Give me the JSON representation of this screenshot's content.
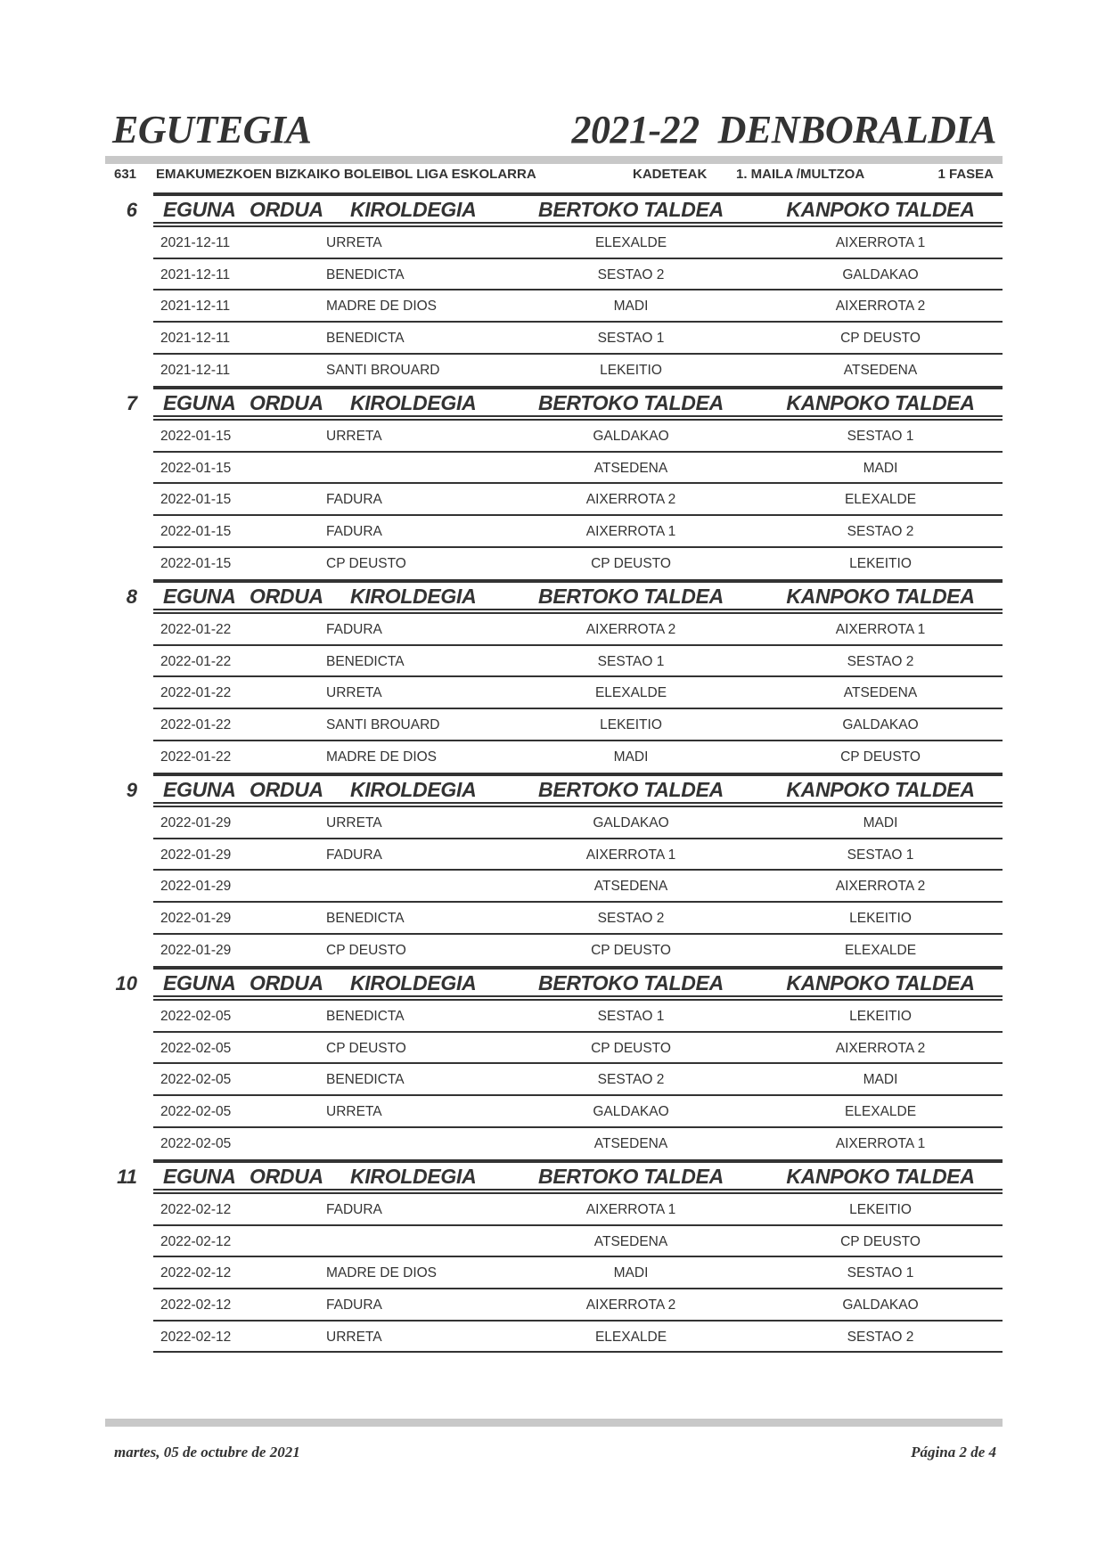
{
  "header": {
    "left_title": "EGUTEGIA",
    "right_title": "2021-22  DENBORALDIA"
  },
  "info": {
    "code": "631",
    "league": "EMAKUMEZKOEN BIZKAIKO BOLEIBOL LIGA ESKOLARRA",
    "category": "KADETEAK",
    "level": "1. MAILA /MULTZOA",
    "phase": "1 FASEA"
  },
  "columns": {
    "day": "EGUNA",
    "time": "ORDUA",
    "venue": "KIROLDEGIA",
    "home": "BERTOKO TALDEA",
    "away": "KANPOKO TALDEA"
  },
  "rounds": [
    {
      "number": "6",
      "matches": [
        {
          "date": "2021-12-11",
          "venue": "URRETA",
          "home": "ELEXALDE",
          "away": "AIXERROTA 1"
        },
        {
          "date": "2021-12-11",
          "venue": "BENEDICTA",
          "home": "SESTAO 2",
          "away": "GALDAKAO"
        },
        {
          "date": "2021-12-11",
          "venue": "MADRE DE DIOS",
          "home": "MADI",
          "away": "AIXERROTA 2"
        },
        {
          "date": "2021-12-11",
          "venue": "BENEDICTA",
          "home": "SESTAO 1",
          "away": "CP DEUSTO"
        },
        {
          "date": "2021-12-11",
          "venue": "SANTI BROUARD",
          "home": "LEKEITIO",
          "away": "ATSEDENA"
        }
      ]
    },
    {
      "number": "7",
      "matches": [
        {
          "date": "2022-01-15",
          "venue": "URRETA",
          "home": "GALDAKAO",
          "away": "SESTAO 1"
        },
        {
          "date": "2022-01-15",
          "venue": "",
          "home": "ATSEDENA",
          "away": "MADI"
        },
        {
          "date": "2022-01-15",
          "venue": "FADURA",
          "home": "AIXERROTA 2",
          "away": "ELEXALDE"
        },
        {
          "date": "2022-01-15",
          "venue": "FADURA",
          "home": "AIXERROTA 1",
          "away": "SESTAO 2"
        },
        {
          "date": "2022-01-15",
          "venue": "CP DEUSTO",
          "home": "CP DEUSTO",
          "away": "LEKEITIO"
        }
      ]
    },
    {
      "number": "8",
      "matches": [
        {
          "date": "2022-01-22",
          "venue": "FADURA",
          "home": "AIXERROTA 2",
          "away": "AIXERROTA 1"
        },
        {
          "date": "2022-01-22",
          "venue": "BENEDICTA",
          "home": "SESTAO 1",
          "away": "SESTAO 2"
        },
        {
          "date": "2022-01-22",
          "venue": "URRETA",
          "home": "ELEXALDE",
          "away": "ATSEDENA"
        },
        {
          "date": "2022-01-22",
          "venue": "SANTI BROUARD",
          "home": "LEKEITIO",
          "away": "GALDAKAO"
        },
        {
          "date": "2022-01-22",
          "venue": "MADRE DE DIOS",
          "home": "MADI",
          "away": "CP DEUSTO"
        }
      ]
    },
    {
      "number": "9",
      "matches": [
        {
          "date": "2022-01-29",
          "venue": "URRETA",
          "home": "GALDAKAO",
          "away": "MADI"
        },
        {
          "date": "2022-01-29",
          "venue": "FADURA",
          "home": "AIXERROTA 1",
          "away": "SESTAO 1"
        },
        {
          "date": "2022-01-29",
          "venue": "",
          "home": "ATSEDENA",
          "away": "AIXERROTA 2"
        },
        {
          "date": "2022-01-29",
          "venue": "BENEDICTA",
          "home": "SESTAO 2",
          "away": "LEKEITIO"
        },
        {
          "date": "2022-01-29",
          "venue": "CP DEUSTO",
          "home": "CP DEUSTO",
          "away": "ELEXALDE"
        }
      ]
    },
    {
      "number": "10",
      "matches": [
        {
          "date": "2022-02-05",
          "venue": "BENEDICTA",
          "home": "SESTAO 1",
          "away": "LEKEITIO"
        },
        {
          "date": "2022-02-05",
          "venue": "CP DEUSTO",
          "home": "CP DEUSTO",
          "away": "AIXERROTA 2"
        },
        {
          "date": "2022-02-05",
          "venue": "BENEDICTA",
          "home": "SESTAO 2",
          "away": "MADI"
        },
        {
          "date": "2022-02-05",
          "venue": "URRETA",
          "home": "GALDAKAO",
          "away": "ELEXALDE"
        },
        {
          "date": "2022-02-05",
          "venue": "",
          "home": "ATSEDENA",
          "away": "AIXERROTA 1"
        }
      ]
    },
    {
      "number": "11",
      "matches": [
        {
          "date": "2022-02-12",
          "venue": "FADURA",
          "home": "AIXERROTA 1",
          "away": "LEKEITIO"
        },
        {
          "date": "2022-02-12",
          "venue": "",
          "home": "ATSEDENA",
          "away": "CP DEUSTO"
        },
        {
          "date": "2022-02-12",
          "venue": "MADRE DE DIOS",
          "home": "MADI",
          "away": "SESTAO 1"
        },
        {
          "date": "2022-02-12",
          "venue": "FADURA",
          "home": "AIXERROTA 2",
          "away": "GALDAKAO"
        },
        {
          "date": "2022-02-12",
          "venue": "URRETA",
          "home": "ELEXALDE",
          "away": "SESTAO 2"
        }
      ]
    }
  ],
  "footer": {
    "date": "martes, 05 de octubre de 2021",
    "page": "Página 2 de 4"
  }
}
